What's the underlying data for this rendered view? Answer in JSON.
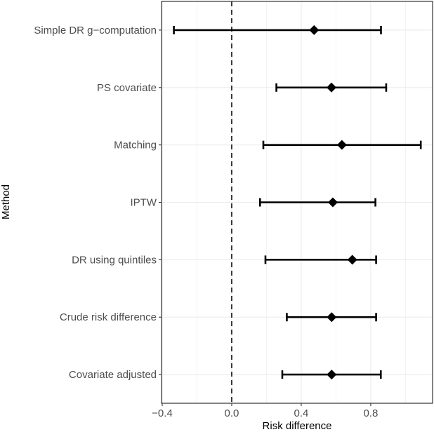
{
  "chart_data": {
    "type": "forest",
    "title": "",
    "xlabel": "Risk difference",
    "ylabel": "Method",
    "xlim": [
      -0.404,
      1.156
    ],
    "xticks": [
      -0.4,
      0.0,
      0.4,
      0.8
    ],
    "xtick_labels": [
      "−0.4",
      "0.0",
      "0.4",
      "0.8"
    ],
    "reference_line": 0,
    "grid": true,
    "categories": [
      "Simple DR g−computation",
      "PS covariate",
      "Matching",
      "IPTW",
      "DR using quintiles",
      "Crude risk difference",
      "Covariate adjusted"
    ],
    "estimate": [
      0.474,
      0.574,
      0.634,
      0.582,
      0.694,
      0.575,
      0.575
    ],
    "lower": [
      -0.333,
      0.257,
      0.182,
      0.163,
      0.194,
      0.317,
      0.291
    ],
    "upper": [
      0.859,
      0.889,
      1.088,
      0.827,
      0.831,
      0.831,
      0.858
    ],
    "colors": {
      "mark": "#000000",
      "grid": "#ebebeb",
      "border": "#333333"
    }
  }
}
